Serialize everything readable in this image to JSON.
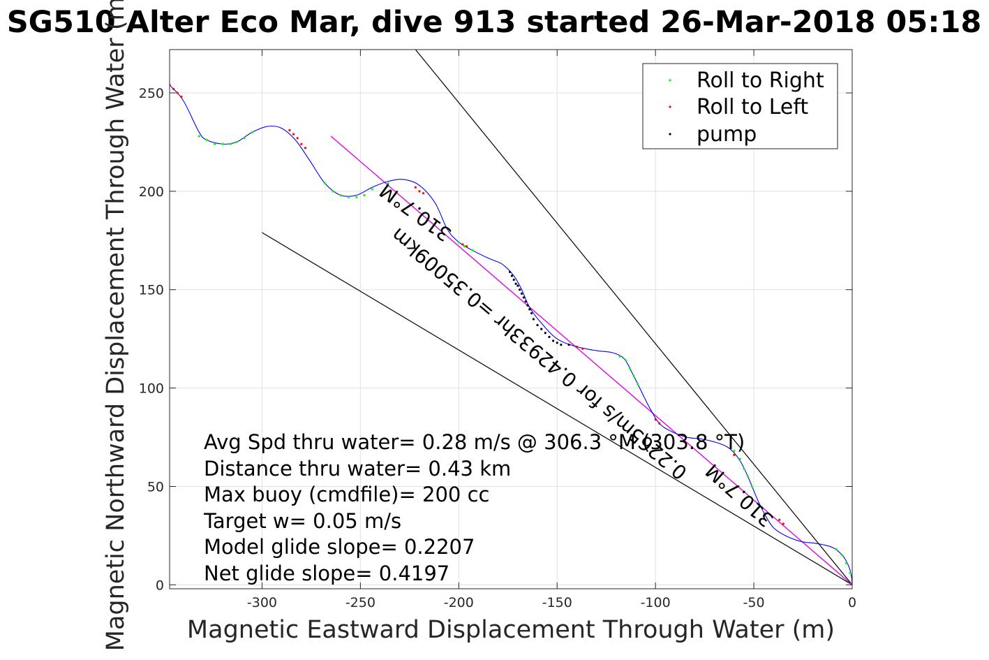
{
  "chart_data": {
    "type": "line",
    "title": "SG510 Alter Eco Mar, dive 913 started 26-Mar-2018 05:18",
    "xlabel": "Magnetic Eastward Displacement Through Water (m)",
    "ylabel": "Magnetic Northward Displacement Through Water (m)",
    "xlim": [
      -347,
      0
    ],
    "ylim": [
      -2,
      272
    ],
    "xticks": [
      -300,
      -250,
      -200,
      -150,
      -100,
      -50,
      0
    ],
    "yticks": [
      0,
      50,
      100,
      150,
      200,
      250
    ],
    "xtick_labels": [
      "-300",
      "-250",
      "-200",
      "-150",
      "-100",
      "-50",
      "0"
    ],
    "ytick_labels": [
      "0",
      "50",
      "100",
      "150",
      "200",
      "250"
    ],
    "grid": true,
    "legend_position": "top-right",
    "legend": [
      {
        "label": "Roll to Right",
        "color": "#00ff00"
      },
      {
        "label": "Roll to Left",
        "color": "#ff0000"
      },
      {
        "label": "pump",
        "color": "#000000"
      }
    ],
    "track": {
      "color": "#0000ff",
      "points": [
        [
          -347,
          254
        ],
        [
          -340,
          246
        ],
        [
          -332,
          230
        ],
        [
          -328,
          226
        ],
        [
          -320,
          224
        ],
        [
          -313,
          225
        ],
        [
          -305,
          230
        ],
        [
          -297,
          233
        ],
        [
          -290,
          232
        ],
        [
          -283,
          226
        ],
        [
          -276,
          216
        ],
        [
          -268,
          204
        ],
        [
          -260,
          198
        ],
        [
          -252,
          198
        ],
        [
          -244,
          202
        ],
        [
          -236,
          205
        ],
        [
          -228,
          206
        ],
        [
          -220,
          203
        ],
        [
          -212,
          194
        ],
        [
          -206,
          181
        ],
        [
          -201,
          175
        ],
        [
          -195,
          171
        ],
        [
          -185,
          166
        ],
        [
          -178,
          163
        ],
        [
          -172,
          157
        ],
        [
          -168,
          150
        ],
        [
          -164,
          141
        ],
        [
          -158,
          133
        ],
        [
          -150,
          125
        ],
        [
          -140,
          121
        ],
        [
          -130,
          119
        ],
        [
          -122,
          118
        ],
        [
          -116,
          115
        ],
        [
          -112,
          108
        ],
        [
          -108,
          100
        ],
        [
          -103,
          90
        ],
        [
          -98,
          82
        ],
        [
          -92,
          78
        ],
        [
          -84,
          75
        ],
        [
          -76,
          74
        ],
        [
          -68,
          72
        ],
        [
          -62,
          69
        ],
        [
          -57,
          63
        ],
        [
          -53,
          55
        ],
        [
          -48,
          43
        ],
        [
          -44,
          35
        ],
        [
          -40,
          29
        ],
        [
          -34,
          25
        ],
        [
          -26,
          22
        ],
        [
          -18,
          21
        ],
        [
          -10,
          19
        ],
        [
          -5,
          15
        ],
        [
          -2,
          10
        ],
        [
          -0.5,
          5
        ],
        [
          0,
          0
        ]
      ]
    },
    "markers": {
      "roll_right": [
        [
          -332,
          228
        ],
        [
          -328,
          226
        ],
        [
          -324,
          224
        ],
        [
          -320,
          224
        ],
        [
          -316,
          224
        ],
        [
          -313,
          225
        ],
        [
          -309,
          227
        ],
        [
          -305,
          230
        ],
        [
          -268,
          204
        ],
        [
          -264,
          200
        ],
        [
          -260,
          198
        ],
        [
          -256,
          197
        ],
        [
          -252,
          197
        ],
        [
          -248,
          198
        ],
        [
          -244,
          201
        ],
        [
          -236,
          204
        ],
        [
          -200,
          174
        ],
        [
          -197,
          172
        ],
        [
          -193,
          170
        ],
        [
          -118,
          116
        ],
        [
          -115,
          114
        ],
        [
          -113,
          110
        ],
        [
          -111,
          106
        ],
        [
          -109,
          102
        ],
        [
          -60,
          68
        ],
        [
          -57,
          64
        ],
        [
          -55,
          59
        ],
        [
          -53,
          55
        ],
        [
          -51,
          50
        ],
        [
          -8,
          18
        ],
        [
          -5,
          15
        ],
        [
          -3,
          11
        ],
        [
          -1,
          6
        ]
      ],
      "roll_left": [
        [
          -347,
          254
        ],
        [
          -345,
          252
        ],
        [
          -343,
          250
        ],
        [
          -341,
          248
        ],
        [
          -286,
          231
        ],
        [
          -284,
          229
        ],
        [
          -282,
          227
        ],
        [
          -280,
          224
        ],
        [
          -278,
          222
        ],
        [
          -222,
          202
        ],
        [
          -220,
          200
        ],
        [
          -218,
          199
        ],
        [
          -198,
          173
        ],
        [
          -196,
          172
        ],
        [
          -140,
          121
        ],
        [
          -137,
          120
        ],
        [
          -100,
          84
        ],
        [
          -98,
          82
        ],
        [
          -60,
          66
        ],
        [
          -37,
          33
        ],
        [
          -35,
          31
        ]
      ],
      "pump": [
        [
          -174,
          159
        ],
        [
          -173,
          157
        ],
        [
          -172,
          155
        ],
        [
          -171,
          153
        ],
        [
          -170,
          152
        ],
        [
          -169,
          150
        ],
        [
          -168,
          148
        ],
        [
          -167,
          146
        ],
        [
          -166,
          144
        ],
        [
          -165,
          142
        ],
        [
          -164,
          140
        ],
        [
          -163,
          138
        ],
        [
          -162,
          135
        ],
        [
          -160,
          132
        ],
        [
          -158,
          130
        ],
        [
          -156,
          128
        ],
        [
          -154,
          126
        ],
        [
          -152,
          124
        ],
        [
          -150,
          123
        ],
        [
          -148,
          122
        ],
        [
          -144,
          122
        ]
      ]
    },
    "reference_lines": [
      {
        "color": "#000000",
        "points": [
          [
            -222,
            272
          ],
          [
            0,
            0
          ]
        ]
      },
      {
        "color": "#000000",
        "points": [
          [
            -300,
            179
          ],
          [
            0,
            0
          ]
        ]
      },
      {
        "color": "#000000",
        "points": [
          [
            -265,
            228
          ],
          [
            0,
            0
          ]
        ]
      },
      {
        "color": "#ff00ff",
        "points": [
          [
            -265,
            228
          ],
          [
            0,
            0
          ]
        ]
      }
    ],
    "onplot_labels": [
      {
        "text": "310.7°M",
        "x": -220,
        "y": 192,
        "angle": 216
      },
      {
        "text": "0.2265m/s for 0.42933hr =0.35009km",
        "x": -157,
        "y": 120,
        "angle": 220
      },
      {
        "text": "310.7°M",
        "x": -55,
        "y": 48,
        "angle": 222
      }
    ],
    "annotations": [
      "Avg Spd thru water=  0.28 m/s @ 306.3 °M (303.8 °T)",
      "Distance thru water=  0.43 km",
      "Max buoy (cmdfile)= 200 cc",
      "Target w= 0.05 m/s",
      "Model glide slope= 0.2207",
      "Net glide slope= 0.4197"
    ]
  }
}
